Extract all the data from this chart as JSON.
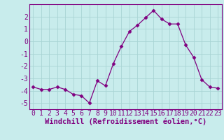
{
  "x": [
    0,
    1,
    2,
    3,
    4,
    5,
    6,
    7,
    8,
    9,
    10,
    11,
    12,
    13,
    14,
    15,
    16,
    17,
    18,
    19,
    20,
    21,
    22,
    23
  ],
  "y": [
    -3.7,
    -3.9,
    -3.9,
    -3.7,
    -3.9,
    -4.3,
    -4.4,
    -5.0,
    -3.2,
    -3.6,
    -1.8,
    -0.4,
    0.8,
    1.3,
    1.9,
    2.5,
    1.8,
    1.4,
    1.4,
    -0.3,
    -1.3,
    -3.1,
    -3.7,
    -3.8
  ],
  "line_color": "#800080",
  "marker": "D",
  "marker_size": 2.5,
  "bg_color": "#c8ecec",
  "grid_color": "#a8d4d4",
  "axis_color": "#800080",
  "tick_color": "#800080",
  "xlabel": "Windchill (Refroidissement éolien,°C)",
  "xlabel_fontsize": 7.5,
  "tick_fontsize": 7,
  "ylim": [
    -5.5,
    3.0
  ],
  "xlim": [
    -0.5,
    23.5
  ],
  "yticks": [
    -5,
    -4,
    -3,
    -2,
    -1,
    0,
    1,
    2
  ],
  "xticks": [
    0,
    1,
    2,
    3,
    4,
    5,
    6,
    7,
    8,
    9,
    10,
    11,
    12,
    13,
    14,
    15,
    16,
    17,
    18,
    19,
    20,
    21,
    22,
    23
  ]
}
